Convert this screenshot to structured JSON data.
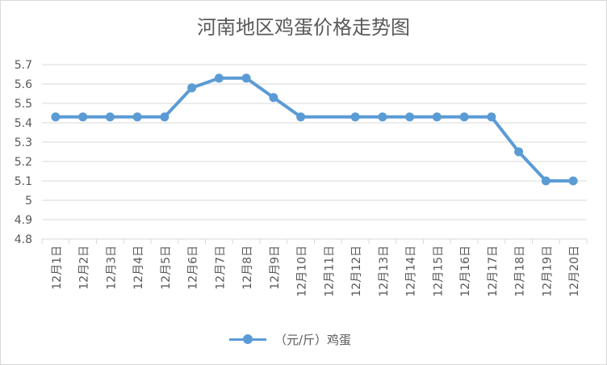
{
  "chart_data": {
    "type": "line",
    "title": "河南地区鸡蛋价格走势图",
    "categories": [
      "12月1日",
      "12月2日",
      "12月3日",
      "12月4日",
      "12月5日",
      "12月6日",
      "12月7日",
      "12月8日",
      "12月9日",
      "12月10日",
      "12月11日",
      "12月12日",
      "12月13日",
      "12月14日",
      "12月15日",
      "12月16日",
      "12月17日",
      "12月18日",
      "12月19日",
      "12月20日"
    ],
    "series": [
      {
        "name": "（元/斤）鸡蛋",
        "values": [
          5.43,
          5.43,
          5.43,
          5.43,
          5.43,
          5.58,
          5.63,
          5.63,
          5.53,
          5.43,
          null,
          5.43,
          5.43,
          5.43,
          5.43,
          5.43,
          5.43,
          5.25,
          5.1,
          5.1
        ],
        "color": "#5b9bd5"
      }
    ],
    "y_ticks": [
      "4.8",
      "4.9",
      "5",
      "5.1",
      "5.2",
      "5.3",
      "5.4",
      "5.5",
      "5.6",
      "5.7"
    ],
    "ylim": [
      4.8,
      5.7
    ],
    "grid": true,
    "legend_position": "bottom"
  }
}
